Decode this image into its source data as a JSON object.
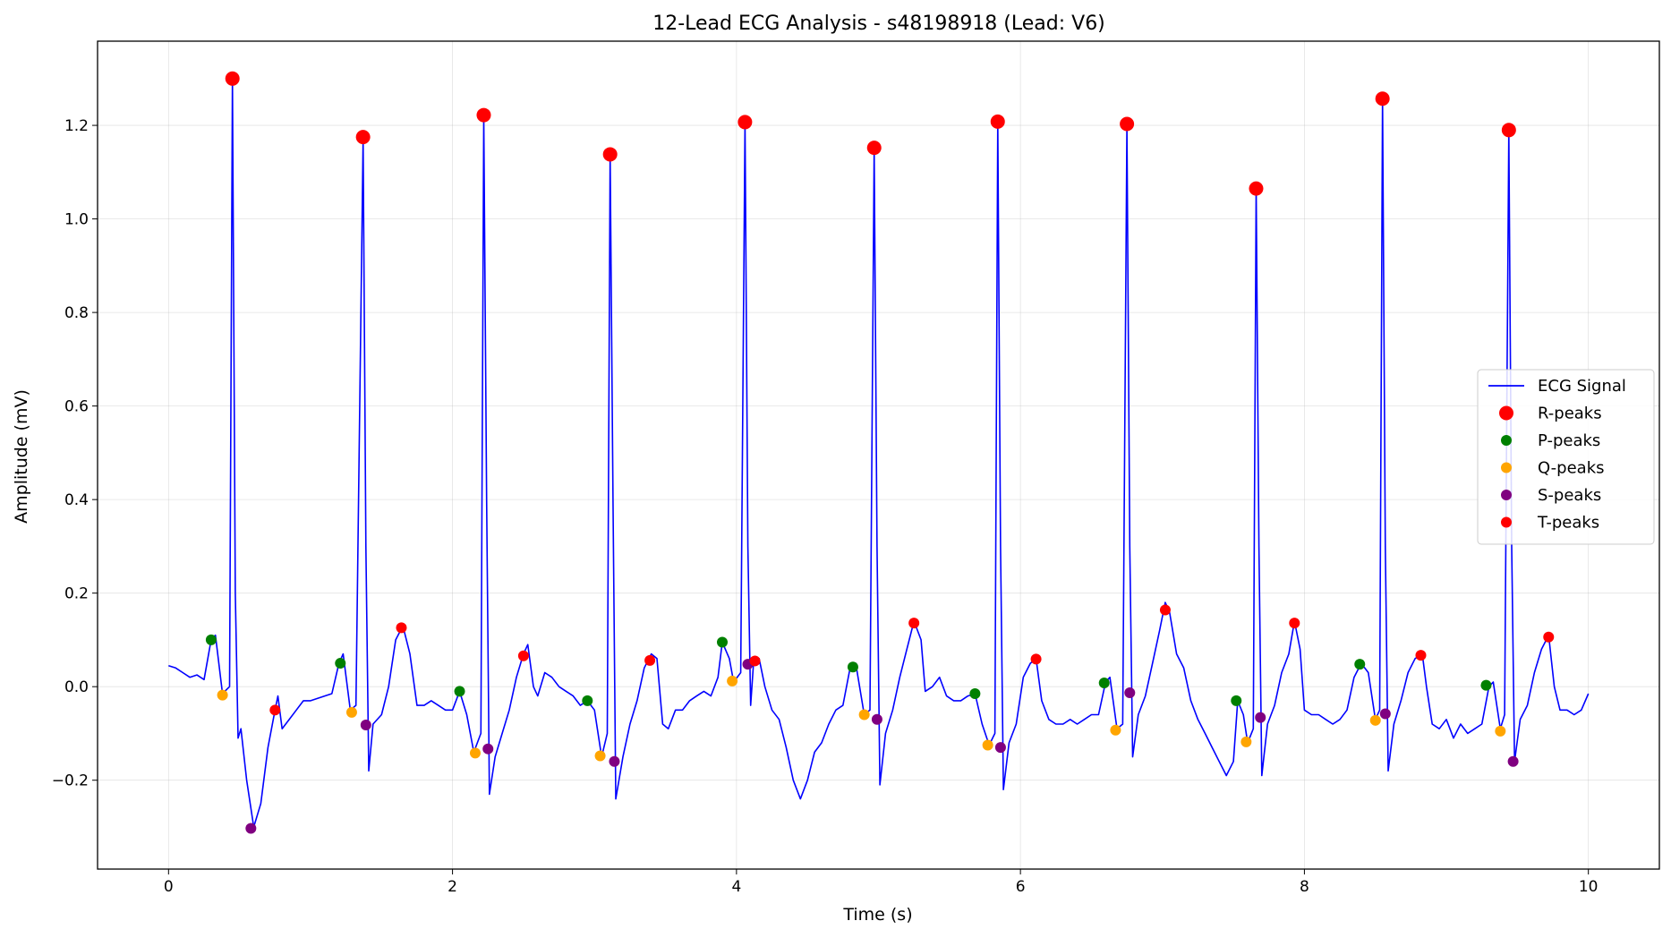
{
  "chart_data": {
    "type": "line",
    "title": "12-Lead ECG Analysis - s48198918 (Lead: V6)",
    "xlabel": "Time (s)",
    "ylabel": "Amplitude (mV)",
    "xlim": [
      -0.5,
      10.5
    ],
    "ylim": [
      -0.39,
      1.38
    ],
    "x_ticks": [
      0,
      2,
      4,
      6,
      8,
      10
    ],
    "x_tick_labels": [
      "0",
      "2",
      "4",
      "6",
      "8",
      "10"
    ],
    "y_ticks": [
      -0.2,
      0.0,
      0.2,
      0.4,
      0.6,
      0.8,
      1.0,
      1.2
    ],
    "y_tick_labels": [
      "−0.2",
      "0.0",
      "0.2",
      "0.4",
      "0.6",
      "0.8",
      "1.0",
      "1.2"
    ],
    "grid": true,
    "legend_position": "center-right",
    "legend": [
      {
        "label": "ECG Signal",
        "marker": "line",
        "color": "#0000ff"
      },
      {
        "label": "R-peaks",
        "marker": "large-dot",
        "color": "#ff0000"
      },
      {
        "label": "P-peaks",
        "marker": "dot",
        "color": "#008000"
      },
      {
        "label": "Q-peaks",
        "marker": "dot",
        "color": "#ffa500"
      },
      {
        "label": "S-peaks",
        "marker": "dot",
        "color": "#800080"
      },
      {
        "label": "T-peaks",
        "marker": "dot",
        "color": "#ff0000"
      }
    ],
    "series": [
      {
        "name": "ECG Signal",
        "color": "#0000ff",
        "points": [
          [
            0.0,
            0.045
          ],
          [
            0.05,
            0.04
          ],
          [
            0.1,
            0.03
          ],
          [
            0.15,
            0.02
          ],
          [
            0.2,
            0.025
          ],
          [
            0.25,
            0.015
          ],
          [
            0.3,
            0.1
          ],
          [
            0.33,
            0.11
          ],
          [
            0.38,
            -0.015
          ],
          [
            0.43,
            0.0
          ],
          [
            0.45,
            1.3
          ],
          [
            0.47,
            0.2
          ],
          [
            0.49,
            -0.11
          ],
          [
            0.51,
            -0.09
          ],
          [
            0.55,
            -0.2
          ],
          [
            0.6,
            -0.3
          ],
          [
            0.65,
            -0.25
          ],
          [
            0.7,
            -0.13
          ],
          [
            0.75,
            -0.05
          ],
          [
            0.77,
            -0.02
          ],
          [
            0.8,
            -0.09
          ],
          [
            0.85,
            -0.07
          ],
          [
            0.9,
            -0.05
          ],
          [
            0.95,
            -0.03
          ],
          [
            1.0,
            -0.03
          ],
          [
            1.05,
            -0.025
          ],
          [
            1.1,
            -0.02
          ],
          [
            1.15,
            -0.015
          ],
          [
            1.2,
            0.05
          ],
          [
            1.23,
            0.07
          ],
          [
            1.28,
            -0.05
          ],
          [
            1.32,
            -0.04
          ],
          [
            1.37,
            1.17
          ],
          [
            1.39,
            0.3
          ],
          [
            1.41,
            -0.18
          ],
          [
            1.44,
            -0.08
          ],
          [
            1.5,
            -0.06
          ],
          [
            1.55,
            0.0
          ],
          [
            1.6,
            0.1
          ],
          [
            1.65,
            0.13
          ],
          [
            1.7,
            0.07
          ],
          [
            1.75,
            -0.04
          ],
          [
            1.8,
            -0.04
          ],
          [
            1.85,
            -0.03
          ],
          [
            1.9,
            -0.04
          ],
          [
            1.95,
            -0.05
          ],
          [
            2.0,
            -0.05
          ],
          [
            2.05,
            -0.01
          ],
          [
            2.1,
            -0.06
          ],
          [
            2.15,
            -0.14
          ],
          [
            2.2,
            -0.1
          ],
          [
            2.22,
            1.22
          ],
          [
            2.24,
            0.4
          ],
          [
            2.26,
            -0.23
          ],
          [
            2.3,
            -0.15
          ],
          [
            2.35,
            -0.1
          ],
          [
            2.4,
            -0.05
          ],
          [
            2.45,
            0.02
          ],
          [
            2.5,
            0.07
          ],
          [
            2.53,
            0.09
          ],
          [
            2.57,
            0.0
          ],
          [
            2.6,
            -0.02
          ],
          [
            2.65,
            0.03
          ],
          [
            2.7,
            0.02
          ],
          [
            2.75,
            0.0
          ],
          [
            2.8,
            -0.01
          ],
          [
            2.85,
            -0.02
          ],
          [
            2.9,
            -0.04
          ],
          [
            2.95,
            -0.03
          ],
          [
            3.0,
            -0.05
          ],
          [
            3.05,
            -0.15
          ],
          [
            3.09,
            -0.1
          ],
          [
            3.11,
            1.14
          ],
          [
            3.13,
            0.4
          ],
          [
            3.15,
            -0.24
          ],
          [
            3.2,
            -0.15
          ],
          [
            3.25,
            -0.08
          ],
          [
            3.3,
            -0.03
          ],
          [
            3.35,
            0.04
          ],
          [
            3.4,
            0.07
          ],
          [
            3.44,
            0.06
          ],
          [
            3.48,
            -0.08
          ],
          [
            3.52,
            -0.09
          ],
          [
            3.57,
            -0.05
          ],
          [
            3.62,
            -0.05
          ],
          [
            3.67,
            -0.03
          ],
          [
            3.72,
            -0.02
          ],
          [
            3.77,
            -0.01
          ],
          [
            3.82,
            -0.02
          ],
          [
            3.87,
            0.02
          ],
          [
            3.9,
            0.095
          ],
          [
            3.95,
            0.06
          ],
          [
            3.98,
            0.01
          ],
          [
            4.03,
            0.03
          ],
          [
            4.06,
            1.21
          ],
          [
            4.08,
            0.3
          ],
          [
            4.1,
            -0.04
          ],
          [
            4.12,
            0.05
          ],
          [
            4.16,
            0.06
          ],
          [
            4.2,
            0.0
          ],
          [
            4.25,
            -0.05
          ],
          [
            4.3,
            -0.07
          ],
          [
            4.35,
            -0.13
          ],
          [
            4.4,
            -0.2
          ],
          [
            4.45,
            -0.24
          ],
          [
            4.5,
            -0.2
          ],
          [
            4.55,
            -0.14
          ],
          [
            4.6,
            -0.12
          ],
          [
            4.65,
            -0.08
          ],
          [
            4.7,
            -0.05
          ],
          [
            4.75,
            -0.04
          ],
          [
            4.8,
            0.04
          ],
          [
            4.84,
            0.05
          ],
          [
            4.9,
            -0.06
          ],
          [
            4.94,
            -0.05
          ],
          [
            4.97,
            1.15
          ],
          [
            4.99,
            0.3
          ],
          [
            5.01,
            -0.21
          ],
          [
            5.05,
            -0.1
          ],
          [
            5.1,
            -0.05
          ],
          [
            5.15,
            0.02
          ],
          [
            5.2,
            0.08
          ],
          [
            5.25,
            0.14
          ],
          [
            5.3,
            0.1
          ],
          [
            5.33,
            -0.01
          ],
          [
            5.38,
            0.0
          ],
          [
            5.43,
            0.02
          ],
          [
            5.48,
            -0.02
          ],
          [
            5.53,
            -0.03
          ],
          [
            5.58,
            -0.03
          ],
          [
            5.63,
            -0.02
          ],
          [
            5.68,
            -0.015
          ],
          [
            5.73,
            -0.08
          ],
          [
            5.78,
            -0.125
          ],
          [
            5.82,
            -0.1
          ],
          [
            5.84,
            1.21
          ],
          [
            5.86,
            0.3
          ],
          [
            5.88,
            -0.22
          ],
          [
            5.92,
            -0.12
          ],
          [
            5.97,
            -0.08
          ],
          [
            6.02,
            0.02
          ],
          [
            6.07,
            0.05
          ],
          [
            6.11,
            0.06
          ],
          [
            6.15,
            -0.03
          ],
          [
            6.2,
            -0.07
          ],
          [
            6.25,
            -0.08
          ],
          [
            6.3,
            -0.08
          ],
          [
            6.35,
            -0.07
          ],
          [
            6.4,
            -0.08
          ],
          [
            6.45,
            -0.07
          ],
          [
            6.5,
            -0.06
          ],
          [
            6.55,
            -0.06
          ],
          [
            6.6,
            0.01
          ],
          [
            6.63,
            0.02
          ],
          [
            6.68,
            -0.09
          ],
          [
            6.72,
            -0.08
          ],
          [
            6.75,
            1.2
          ],
          [
            6.77,
            0.3
          ],
          [
            6.79,
            -0.15
          ],
          [
            6.83,
            -0.06
          ],
          [
            6.88,
            -0.02
          ],
          [
            6.93,
            0.05
          ],
          [
            6.98,
            0.12
          ],
          [
            7.02,
            0.18
          ],
          [
            7.05,
            0.16
          ],
          [
            7.1,
            0.07
          ],
          [
            7.15,
            0.04
          ],
          [
            7.2,
            -0.03
          ],
          [
            7.25,
            -0.07
          ],
          [
            7.3,
            -0.1
          ],
          [
            7.35,
            -0.13
          ],
          [
            7.4,
            -0.16
          ],
          [
            7.45,
            -0.19
          ],
          [
            7.5,
            -0.16
          ],
          [
            7.53,
            -0.03
          ],
          [
            7.57,
            -0.06
          ],
          [
            7.6,
            -0.12
          ],
          [
            7.64,
            -0.09
          ],
          [
            7.66,
            1.07
          ],
          [
            7.68,
            0.3
          ],
          [
            7.7,
            -0.19
          ],
          [
            7.74,
            -0.08
          ],
          [
            7.79,
            -0.04
          ],
          [
            7.84,
            0.03
          ],
          [
            7.89,
            0.07
          ],
          [
            7.93,
            0.14
          ],
          [
            7.97,
            0.08
          ],
          [
            8.0,
            -0.05
          ],
          [
            8.05,
            -0.06
          ],
          [
            8.1,
            -0.06
          ],
          [
            8.15,
            -0.07
          ],
          [
            8.2,
            -0.08
          ],
          [
            8.25,
            -0.07
          ],
          [
            8.3,
            -0.05
          ],
          [
            8.35,
            0.02
          ],
          [
            8.4,
            0.05
          ],
          [
            8.45,
            0.03
          ],
          [
            8.5,
            -0.07
          ],
          [
            8.53,
            -0.05
          ],
          [
            8.55,
            1.26
          ],
          [
            8.57,
            0.3
          ],
          [
            8.59,
            -0.18
          ],
          [
            8.63,
            -0.08
          ],
          [
            8.68,
            -0.03
          ],
          [
            8.73,
            0.03
          ],
          [
            8.78,
            0.06
          ],
          [
            8.83,
            0.07
          ],
          [
            8.86,
            0.0
          ],
          [
            8.9,
            -0.08
          ],
          [
            8.95,
            -0.09
          ],
          [
            9.0,
            -0.07
          ],
          [
            9.05,
            -0.11
          ],
          [
            9.1,
            -0.08
          ],
          [
            9.15,
            -0.1
          ],
          [
            9.2,
            -0.09
          ],
          [
            9.25,
            -0.08
          ],
          [
            9.3,
            0.0
          ],
          [
            9.33,
            0.01
          ],
          [
            9.38,
            -0.09
          ],
          [
            9.41,
            -0.06
          ],
          [
            9.44,
            1.19
          ],
          [
            9.46,
            0.3
          ],
          [
            9.48,
            -0.16
          ],
          [
            9.52,
            -0.07
          ],
          [
            9.57,
            -0.04
          ],
          [
            9.62,
            0.03
          ],
          [
            9.67,
            0.08
          ],
          [
            9.72,
            0.11
          ],
          [
            9.76,
            0.0
          ],
          [
            9.8,
            -0.05
          ],
          [
            9.85,
            -0.05
          ],
          [
            9.9,
            -0.06
          ],
          [
            9.95,
            -0.05
          ],
          [
            10.0,
            -0.015
          ]
        ]
      }
    ],
    "markers": [
      {
        "name": "R-peaks",
        "color": "#ff0000",
        "size": "large",
        "points": [
          [
            0.45,
            1.3
          ],
          [
            1.37,
            1.175
          ],
          [
            2.22,
            1.222
          ],
          [
            3.11,
            1.138
          ],
          [
            4.06,
            1.207
          ],
          [
            4.97,
            1.152
          ],
          [
            5.84,
            1.208
          ],
          [
            6.75,
            1.203
          ],
          [
            7.66,
            1.065
          ],
          [
            8.55,
            1.257
          ],
          [
            9.44,
            1.19
          ]
        ]
      },
      {
        "name": "P-peaks",
        "color": "#008000",
        "size": "small",
        "points": [
          [
            0.3,
            0.1
          ],
          [
            1.21,
            0.05
          ],
          [
            2.05,
            -0.01
          ],
          [
            2.95,
            -0.03
          ],
          [
            3.9,
            0.095
          ],
          [
            4.82,
            0.042
          ],
          [
            5.68,
            -0.015
          ],
          [
            6.59,
            0.008
          ],
          [
            7.52,
            -0.03
          ],
          [
            8.39,
            0.048
          ],
          [
            9.28,
            0.003
          ]
        ]
      },
      {
        "name": "Q-peaks",
        "color": "#ffa500",
        "size": "small",
        "points": [
          [
            0.38,
            -0.018
          ],
          [
            1.29,
            -0.055
          ],
          [
            2.16,
            -0.142
          ],
          [
            3.04,
            -0.148
          ],
          [
            3.97,
            0.012
          ],
          [
            4.9,
            -0.06
          ],
          [
            5.77,
            -0.125
          ],
          [
            6.67,
            -0.093
          ],
          [
            7.59,
            -0.118
          ],
          [
            8.5,
            -0.072
          ],
          [
            9.38,
            -0.095
          ]
        ]
      },
      {
        "name": "S-peaks",
        "color": "#800080",
        "size": "small",
        "points": [
          [
            0.58,
            -0.303
          ],
          [
            1.39,
            -0.082
          ],
          [
            2.25,
            -0.133
          ],
          [
            3.14,
            -0.16
          ],
          [
            4.08,
            0.048
          ],
          [
            4.99,
            -0.07
          ],
          [
            5.86,
            -0.13
          ],
          [
            6.77,
            -0.013
          ],
          [
            7.69,
            -0.066
          ],
          [
            8.57,
            -0.058
          ],
          [
            9.47,
            -0.16
          ]
        ]
      },
      {
        "name": "T-peaks",
        "color": "#ff0000",
        "size": "small",
        "points": [
          [
            0.75,
            -0.05
          ],
          [
            1.64,
            0.126
          ],
          [
            2.5,
            0.066
          ],
          [
            3.39,
            0.056
          ],
          [
            4.13,
            0.055
          ],
          [
            5.25,
            0.136
          ],
          [
            6.11,
            0.059
          ],
          [
            7.02,
            0.164
          ],
          [
            7.93,
            0.136
          ],
          [
            8.82,
            0.067
          ],
          [
            9.72,
            0.106
          ]
        ]
      }
    ]
  }
}
